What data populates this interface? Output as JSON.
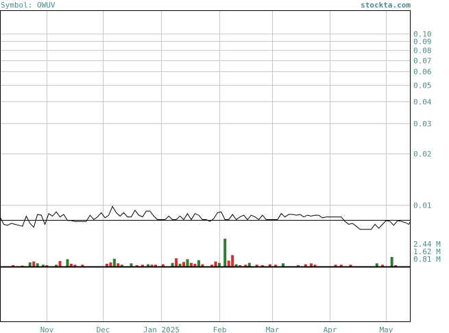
{
  "header": {
    "symbol_label": "Symbol: OWUV",
    "site_label": "stockta.com"
  },
  "colors": {
    "text": "#4f8a8a",
    "grid": "#c8c8c8",
    "price_line": "#000000",
    "volume_up": "#2e7d32",
    "volume_down": "#d32f2f",
    "frame": "#000000"
  },
  "chart_data": {
    "type": "line",
    "title": "Symbol: OWUV",
    "scale": "log",
    "ylim": [
      0.0065,
      0.11
    ],
    "y_ticks": [
      0.1,
      0.09,
      0.08,
      0.07,
      0.06,
      0.05,
      0.04,
      0.03,
      0.02,
      0.01
    ],
    "y_tick_labels": [
      "0.10",
      "0.09",
      "0.08",
      "0.07",
      "0.06",
      "0.05",
      "0.04",
      "0.03",
      "0.02",
      "0.01"
    ],
    "x_labels": [
      {
        "label": "Nov",
        "date": "2024-11-01"
      },
      {
        "label": "Dec",
        "date": "2024-12-01"
      },
      {
        "label": "Jan 2025",
        "date": "2025-01-01"
      },
      {
        "label": "Feb",
        "date": "2025-02-01"
      },
      {
        "label": "Mar",
        "date": "2025-03-01"
      },
      {
        "label": "Apr",
        "date": "2025-04-01"
      },
      {
        "label": "May",
        "date": "2025-05-01"
      }
    ],
    "xlim": [
      "2024-10-07",
      "2025-05-14"
    ],
    "reference_line": 0.0082,
    "series": [
      {
        "name": "OWUV",
        "x": [
          "2024-10-07",
          "2024-10-09",
          "2024-10-11",
          "2024-10-13",
          "2024-10-15",
          "2024-10-17",
          "2024-10-19",
          "2024-10-21",
          "2024-10-23",
          "2024-10-25",
          "2024-10-27",
          "2024-10-29",
          "2024-10-31",
          "2024-11-02",
          "2024-11-04",
          "2024-11-06",
          "2024-11-08",
          "2024-11-10",
          "2024-11-12",
          "2024-11-14",
          "2024-11-16",
          "2024-11-18",
          "2024-11-20",
          "2024-11-22",
          "2024-11-24",
          "2024-11-26",
          "2024-11-28",
          "2024-11-30",
          "2024-12-02",
          "2024-12-04",
          "2024-12-06",
          "2024-12-08",
          "2024-12-10",
          "2024-12-12",
          "2024-12-14",
          "2024-12-16",
          "2024-12-18",
          "2024-12-20",
          "2024-12-22",
          "2024-12-24",
          "2024-12-26",
          "2024-12-28",
          "2024-12-30",
          "2025-01-01",
          "2025-01-03",
          "2025-01-05",
          "2025-01-07",
          "2025-01-09",
          "2025-01-11",
          "2025-01-13",
          "2025-01-15",
          "2025-01-17",
          "2025-01-19",
          "2025-01-21",
          "2025-01-23",
          "2025-01-25",
          "2025-01-27",
          "2025-01-29",
          "2025-01-31",
          "2025-02-02",
          "2025-02-04",
          "2025-02-06",
          "2025-02-08",
          "2025-02-10",
          "2025-02-12",
          "2025-02-14",
          "2025-02-16",
          "2025-02-18",
          "2025-02-20",
          "2025-02-22",
          "2025-02-24",
          "2025-02-26",
          "2025-02-28",
          "2025-03-02",
          "2025-03-04",
          "2025-03-06",
          "2025-03-08",
          "2025-03-10",
          "2025-03-12",
          "2025-03-14",
          "2025-03-16",
          "2025-03-18",
          "2025-03-20",
          "2025-03-22",
          "2025-03-24",
          "2025-03-26",
          "2025-03-28",
          "2025-03-30",
          "2025-04-01",
          "2025-04-03",
          "2025-04-05",
          "2025-04-07",
          "2025-04-09",
          "2025-04-11",
          "2025-04-13",
          "2025-04-15",
          "2025-04-17",
          "2025-04-19",
          "2025-04-21",
          "2025-04-23",
          "2025-04-25",
          "2025-04-27",
          "2025-04-29",
          "2025-05-01",
          "2025-05-03",
          "2025-05-05",
          "2025-05-07",
          "2025-05-09",
          "2025-05-11",
          "2025-05-13",
          "2025-05-14"
        ],
        "values": [
          0.0085,
          0.0077,
          0.0076,
          0.0078,
          0.0077,
          0.0076,
          0.0075,
          0.0086,
          0.0078,
          0.0074,
          0.0088,
          0.0087,
          0.0077,
          0.0089,
          0.0086,
          0.0091,
          0.0085,
          0.0088,
          0.0081,
          0.0081,
          0.008,
          0.008,
          0.008,
          0.008,
          0.0087,
          0.0082,
          0.0085,
          0.009,
          0.0084,
          0.0087,
          0.0098,
          0.009,
          0.0086,
          0.009,
          0.0085,
          0.0085,
          0.0093,
          0.0087,
          0.0085,
          0.0092,
          0.0092,
          0.0086,
          0.0082,
          0.0082,
          0.0082,
          0.0086,
          0.0082,
          0.0082,
          0.0086,
          0.0082,
          0.0089,
          0.0082,
          0.0089,
          0.0087,
          0.0082,
          0.0082,
          0.008,
          0.0083,
          0.009,
          0.0091,
          0.0082,
          0.0082,
          0.0088,
          0.0082,
          0.0085,
          0.0087,
          0.0082,
          0.0087,
          0.0085,
          0.0082,
          0.0087,
          0.0082,
          0.0082,
          0.0082,
          0.0082,
          0.0089,
          0.0085,
          0.0088,
          0.0088,
          0.0087,
          0.0088,
          0.0085,
          0.0087,
          0.0086,
          0.0087,
          0.0087,
          0.0084,
          0.0085,
          0.0085,
          0.0085,
          0.0085,
          0.0085,
          0.008,
          0.0077,
          0.0078,
          0.0075,
          0.0072,
          0.0072,
          0.0072,
          0.0072,
          0.0077,
          0.0073,
          0.0077,
          0.0081,
          0.008,
          0.0076,
          0.0081,
          0.008,
          0.0079,
          0.0077,
          0.008
        ]
      }
    ],
    "volume": {
      "labels": [
        "2.44 M",
        "1.62 M",
        "0.81 M"
      ],
      "ticks": [
        2.44,
        1.62,
        0.81
      ],
      "ylim": [
        0,
        3.3
      ],
      "unit": "M",
      "bars": [
        {
          "date": "2024-10-14",
          "value": 0.15,
          "dir": "down"
        },
        {
          "date": "2024-10-19",
          "value": 0.1,
          "dir": "down"
        },
        {
          "date": "2024-10-23",
          "value": 0.45,
          "dir": "up"
        },
        {
          "date": "2024-10-25",
          "value": 0.55,
          "dir": "down"
        },
        {
          "date": "2024-10-27",
          "value": 0.35,
          "dir": "up"
        },
        {
          "date": "2024-10-30",
          "value": 0.2,
          "dir": "up"
        },
        {
          "date": "2024-11-01",
          "value": 0.15,
          "dir": "down"
        },
        {
          "date": "2024-11-06",
          "value": 0.2,
          "dir": "up"
        },
        {
          "date": "2024-11-08",
          "value": 0.6,
          "dir": "down"
        },
        {
          "date": "2024-11-12",
          "value": 0.8,
          "dir": "up"
        },
        {
          "date": "2024-11-14",
          "value": 0.3,
          "dir": "down"
        },
        {
          "date": "2024-11-16",
          "value": 0.2,
          "dir": "down"
        },
        {
          "date": "2024-11-20",
          "value": 0.2,
          "dir": "down"
        },
        {
          "date": "2024-12-03",
          "value": 0.3,
          "dir": "down"
        },
        {
          "date": "2024-12-05",
          "value": 0.45,
          "dir": "down"
        },
        {
          "date": "2024-12-07",
          "value": 0.85,
          "dir": "up"
        },
        {
          "date": "2024-12-09",
          "value": 0.35,
          "dir": "down"
        },
        {
          "date": "2024-12-11",
          "value": 0.2,
          "dir": "up"
        },
        {
          "date": "2024-12-16",
          "value": 0.35,
          "dir": "up"
        },
        {
          "date": "2024-12-19",
          "value": 0.15,
          "dir": "down"
        },
        {
          "date": "2024-12-22",
          "value": 0.2,
          "dir": "down"
        },
        {
          "date": "2024-12-25",
          "value": 0.25,
          "dir": "up"
        },
        {
          "date": "2024-12-27",
          "value": 0.2,
          "dir": "down"
        },
        {
          "date": "2024-12-29",
          "value": 0.2,
          "dir": "down"
        },
        {
          "date": "2025-01-02",
          "value": 0.25,
          "dir": "down"
        },
        {
          "date": "2025-01-07",
          "value": 0.4,
          "dir": "up"
        },
        {
          "date": "2025-01-09",
          "value": 0.9,
          "dir": "down"
        },
        {
          "date": "2025-01-11",
          "value": 0.3,
          "dir": "up"
        },
        {
          "date": "2025-01-13",
          "value": 0.5,
          "dir": "down"
        },
        {
          "date": "2025-01-15",
          "value": 0.8,
          "dir": "up"
        },
        {
          "date": "2025-01-17",
          "value": 0.4,
          "dir": "down"
        },
        {
          "date": "2025-01-19",
          "value": 0.3,
          "dir": "down"
        },
        {
          "date": "2025-01-21",
          "value": 0.7,
          "dir": "up"
        },
        {
          "date": "2025-01-23",
          "value": 0.25,
          "dir": "down"
        },
        {
          "date": "2025-01-28",
          "value": 0.2,
          "dir": "down"
        },
        {
          "date": "2025-01-30",
          "value": 0.55,
          "dir": "down"
        },
        {
          "date": "2025-02-01",
          "value": 0.4,
          "dir": "up"
        },
        {
          "date": "2025-02-04",
          "value": 3.05,
          "dir": "up"
        },
        {
          "date": "2025-02-06",
          "value": 0.65,
          "dir": "down"
        },
        {
          "date": "2025-02-08",
          "value": 1.25,
          "dir": "down"
        },
        {
          "date": "2025-02-10",
          "value": 0.25,
          "dir": "up"
        },
        {
          "date": "2025-02-12",
          "value": 0.15,
          "dir": "down"
        },
        {
          "date": "2025-02-15",
          "value": 0.2,
          "dir": "down"
        },
        {
          "date": "2025-02-17",
          "value": 0.4,
          "dir": "up"
        },
        {
          "date": "2025-02-21",
          "value": 0.2,
          "dir": "down"
        },
        {
          "date": "2025-02-24",
          "value": 0.15,
          "dir": "down"
        },
        {
          "date": "2025-02-28",
          "value": 0.25,
          "dir": "down"
        },
        {
          "date": "2025-03-03",
          "value": 0.2,
          "dir": "down"
        },
        {
          "date": "2025-03-07",
          "value": 0.35,
          "dir": "up"
        },
        {
          "date": "2025-03-15",
          "value": 0.15,
          "dir": "down"
        },
        {
          "date": "2025-03-19",
          "value": 0.25,
          "dir": "down"
        },
        {
          "date": "2025-03-22",
          "value": 0.35,
          "dir": "down"
        },
        {
          "date": "2025-03-24",
          "value": 0.2,
          "dir": "down"
        },
        {
          "date": "2025-04-04",
          "value": 0.2,
          "dir": "down"
        },
        {
          "date": "2025-04-07",
          "value": 0.2,
          "dir": "down"
        },
        {
          "date": "2025-04-12",
          "value": 0.2,
          "dir": "down"
        },
        {
          "date": "2025-04-26",
          "value": 0.35,
          "dir": "up"
        },
        {
          "date": "2025-04-29",
          "value": 0.2,
          "dir": "down"
        },
        {
          "date": "2025-05-04",
          "value": 1.05,
          "dir": "up"
        },
        {
          "date": "2025-05-06",
          "value": 0.15,
          "dir": "down"
        }
      ]
    }
  }
}
